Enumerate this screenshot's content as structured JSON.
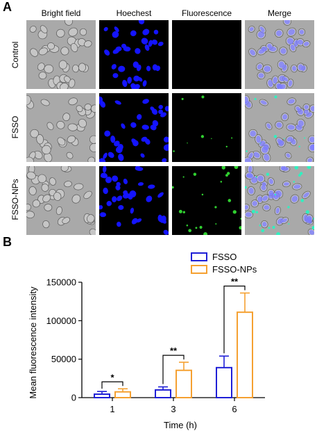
{
  "panel_a": {
    "letter": "A",
    "columns": [
      "Bright field",
      "Hoechest",
      "Fluorescence",
      "Merge"
    ],
    "rows": [
      "Control",
      "FSSO",
      "FSSO-NPs"
    ]
  },
  "panel_b": {
    "letter": "B"
  },
  "chart_data": {
    "type": "bar",
    "categories": [
      "1",
      "3",
      "6"
    ],
    "xlabel": "Time (h)",
    "ylabel": "Mean fluorescence intensity",
    "ylim": [
      0,
      150000
    ],
    "yticks": [
      "0",
      "50000",
      "100000",
      "150000"
    ],
    "series": [
      {
        "name": "FSSO",
        "values": [
          4500,
          10000,
          39000
        ],
        "errors": [
          3500,
          4000,
          15000
        ],
        "color": "#1f1fd6"
      },
      {
        "name": "FSSO-NPs",
        "values": [
          7500,
          35500,
          111000
        ],
        "errors": [
          4000,
          10500,
          25000
        ],
        "color": "#f5a030"
      }
    ],
    "significance": [
      "*",
      "**",
      "**"
    ],
    "legend_position": "top-right"
  }
}
